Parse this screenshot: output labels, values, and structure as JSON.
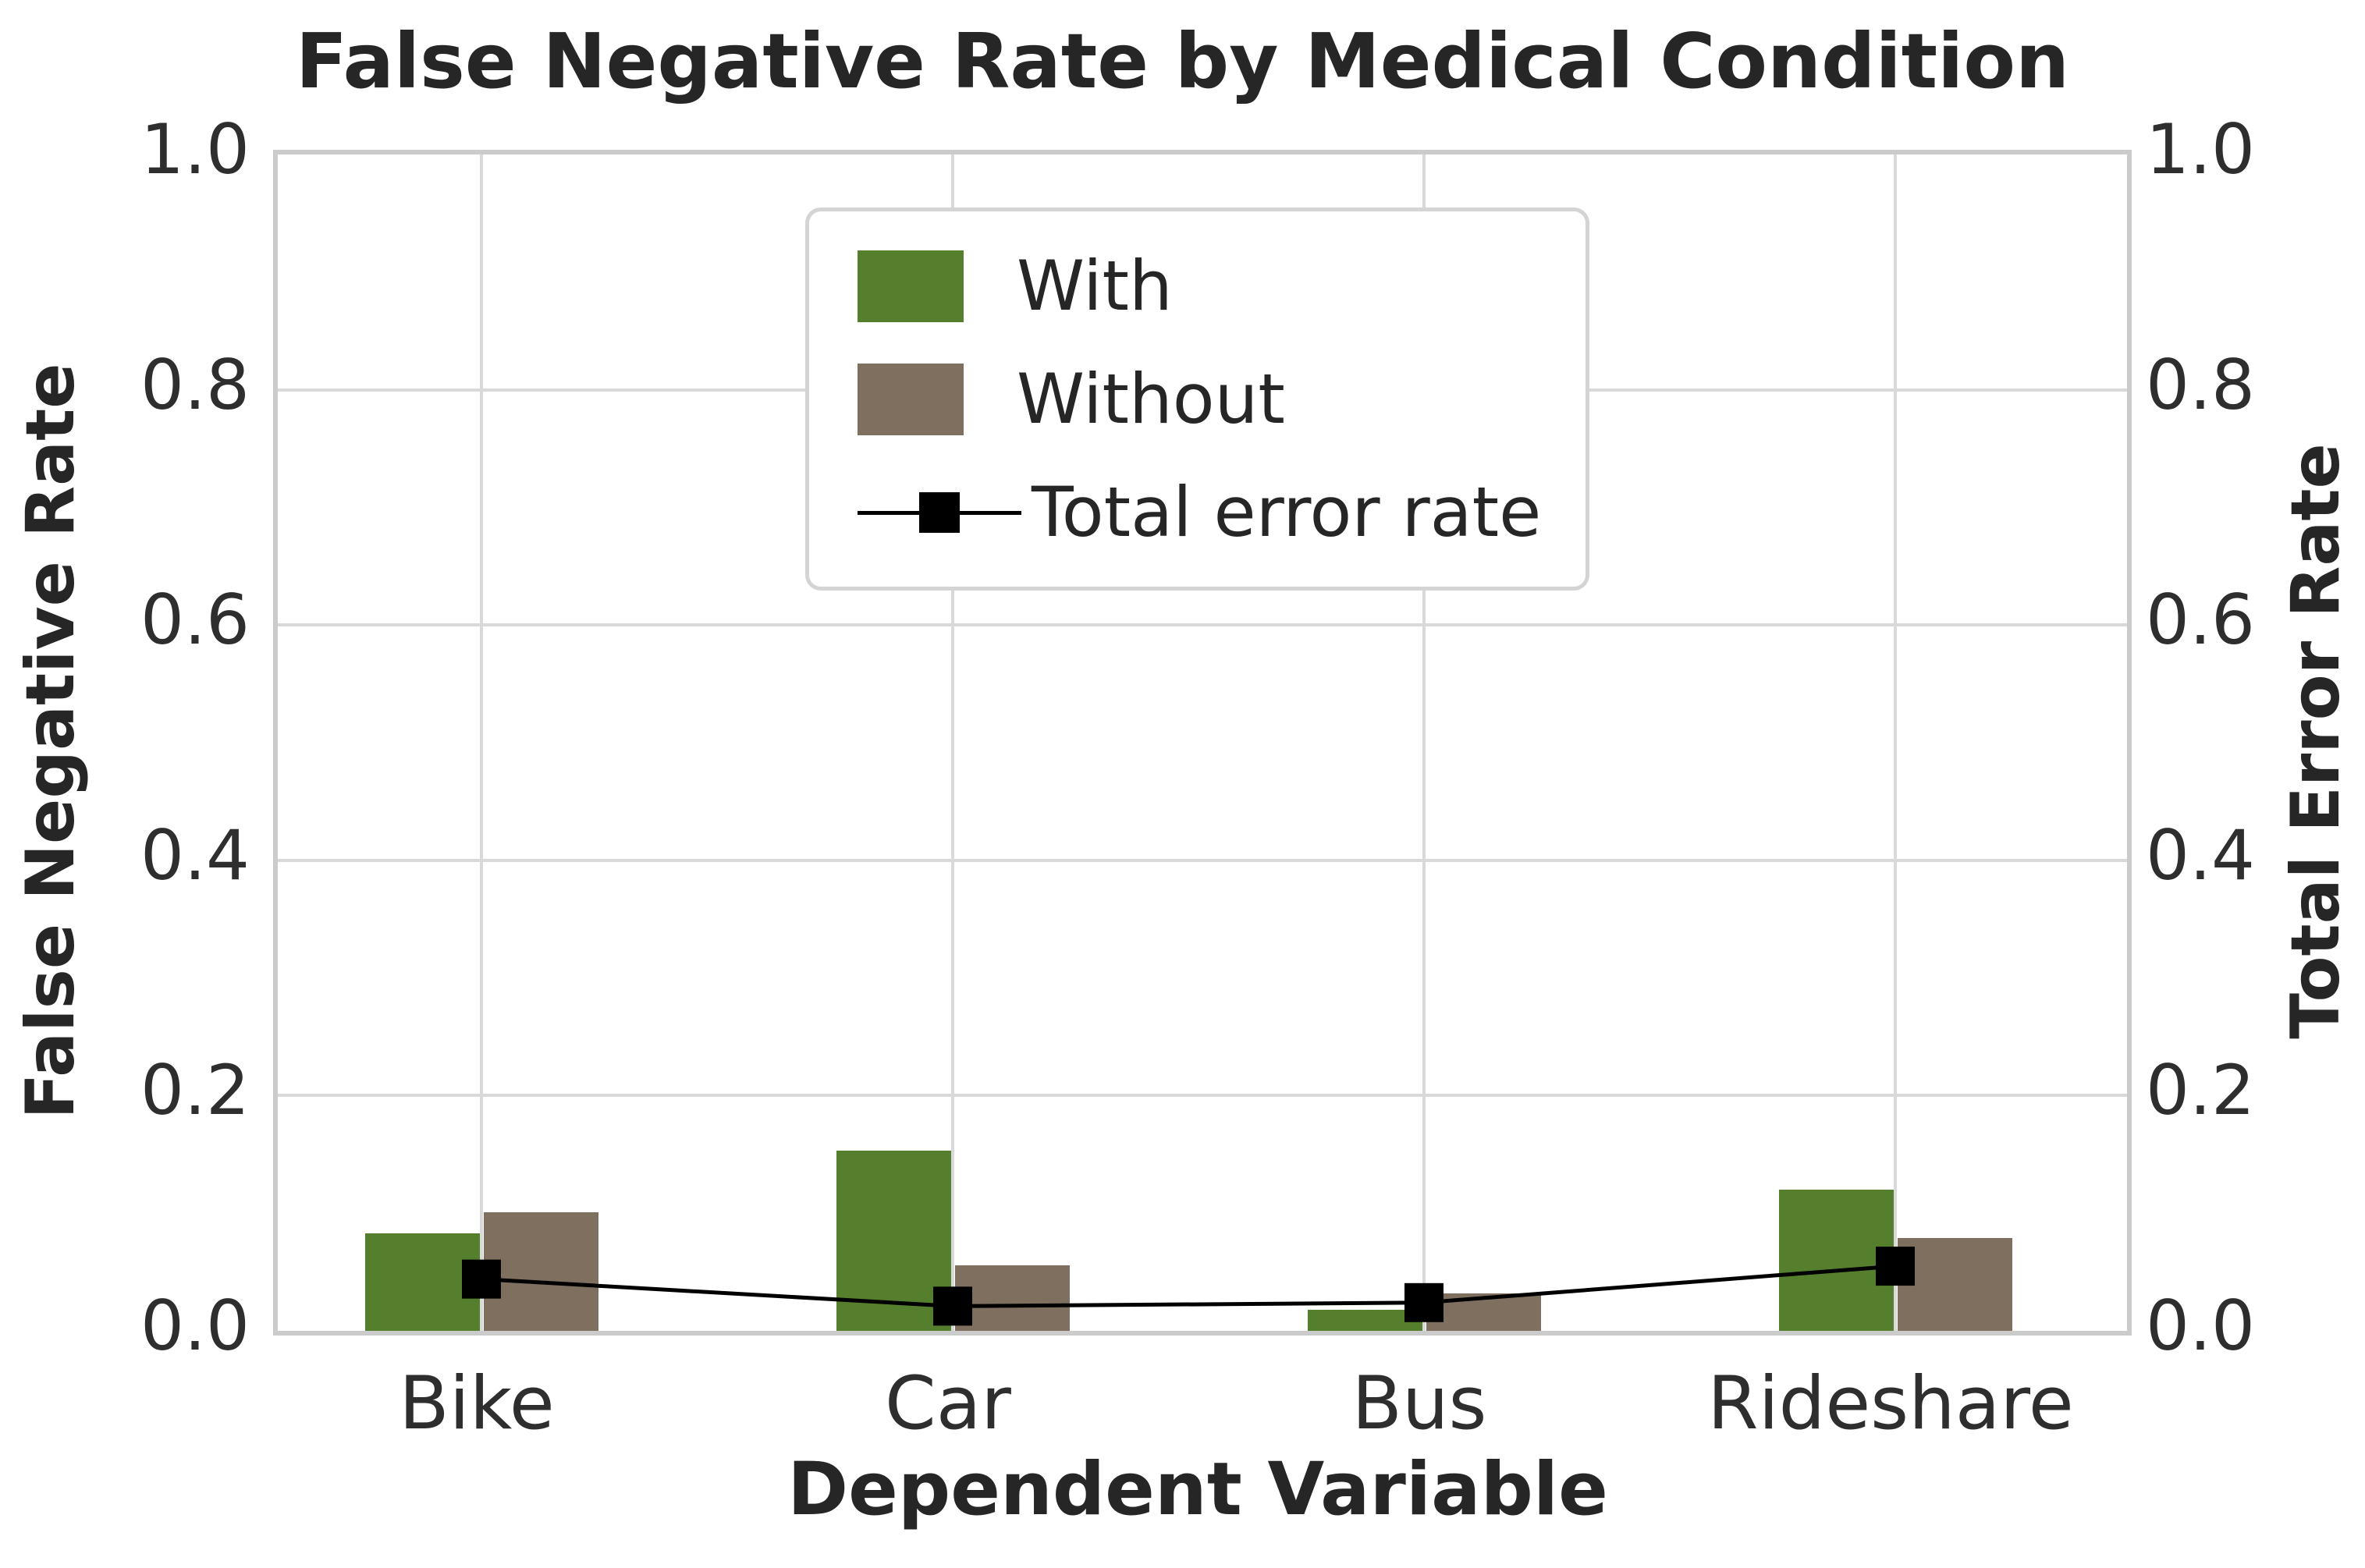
{
  "title": "False Negative Rate by Medical Condition",
  "chart_data": {
    "type": "bar",
    "title": "False Negative Rate by Medical Condition",
    "xlabel": "Dependent Variable",
    "ylabel_left": "False Negative Rate",
    "ylabel_right": "Total Error Rate",
    "categories": [
      "Bike",
      "Car",
      "Bus",
      "Rideshare"
    ],
    "series": [
      {
        "name": "With",
        "type": "bar",
        "color": "#567f2d",
        "values": [
          0.083,
          0.153,
          0.018,
          0.12
        ]
      },
      {
        "name": "Without",
        "type": "bar",
        "color": "#7f6f5f",
        "values": [
          0.101,
          0.056,
          0.032,
          0.079
        ]
      },
      {
        "name": "Total error rate",
        "type": "line",
        "color": "#000000",
        "marker": "square",
        "values": [
          0.044,
          0.021,
          0.024,
          0.055
        ]
      }
    ],
    "ylim": [
      0.0,
      1.0
    ],
    "yticks": [
      0.0,
      0.2,
      0.4,
      0.6,
      0.8,
      1.0
    ],
    "grid": true,
    "legend_position": "upper center",
    "colors": {
      "with_bar": "#567f2d",
      "without_bar": "#7f6f5f",
      "line": "#000000",
      "grid": "#d9d9d9",
      "spine": "#cbcbcb",
      "text": "#262626"
    }
  }
}
